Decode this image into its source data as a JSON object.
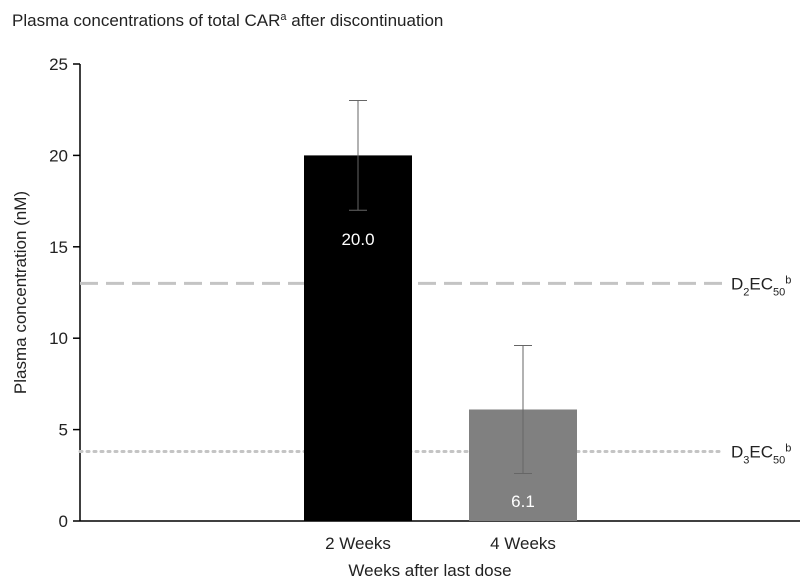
{
  "chart_data": {
    "type": "bar",
    "title": [
      {
        "text": "Plasma concentrations of total CAR"
      },
      {
        "text": "a",
        "shift": "super"
      },
      {
        "text": " after discontinuation"
      }
    ],
    "x_label": "Weeks after last dose",
    "y_label": "Plasma concentration (nM)",
    "categories": [
      "2 Weeks",
      "4 Weeks"
    ],
    "values": [
      20.0,
      6.1
    ],
    "value_labels": [
      "20.0",
      "6.1"
    ],
    "errors": [
      3.0,
      3.5
    ],
    "colors": [
      "#000000",
      "#808080"
    ],
    "ylim": [
      0,
      25
    ],
    "yticks": [
      0,
      5,
      10,
      15,
      20,
      25
    ],
    "reference_lines": [
      {
        "value": 13.0,
        "style": "dashed",
        "color": "#c4c4c4",
        "label": [
          {
            "text": "D"
          },
          {
            "text": "2",
            "shift": "sub"
          },
          {
            "text": "EC"
          },
          {
            "text": "50",
            "shift": "sub"
          },
          {
            "text": "b",
            "shift": "super"
          }
        ]
      },
      {
        "value": 3.8,
        "style": "dotted",
        "color": "#c4c4c4",
        "label": [
          {
            "text": "D"
          },
          {
            "text": "3",
            "shift": "sub"
          },
          {
            "text": "EC"
          },
          {
            "text": "50",
            "shift": "sub"
          },
          {
            "text": "b",
            "shift": "super"
          }
        ]
      }
    ]
  }
}
